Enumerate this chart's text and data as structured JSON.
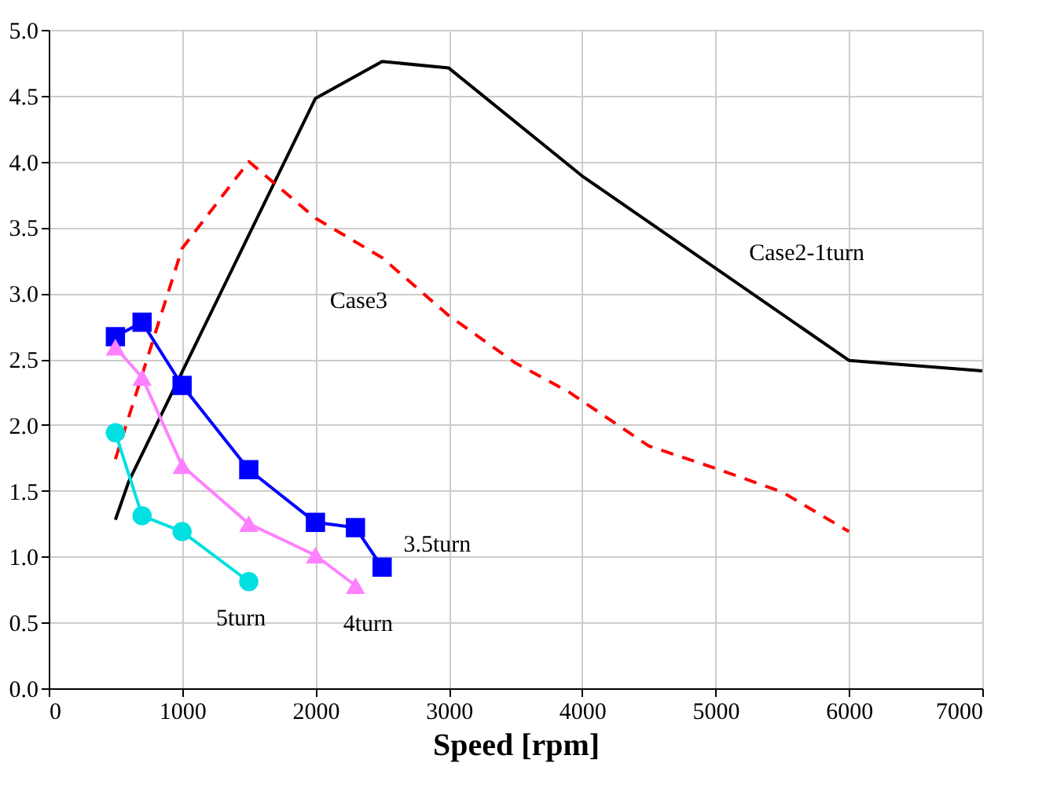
{
  "chart_data": {
    "type": "line",
    "xlabel": "Speed [rpm]",
    "xlim": [
      0,
      7000
    ],
    "xticks": [
      0,
      1000,
      2000,
      3000,
      4000,
      5000,
      6000,
      7000
    ],
    "ylim": [
      0,
      5.0
    ],
    "yticks": [
      {
        "value": 0,
        "label": "0.0"
      },
      {
        "value": 0.5,
        "label": "0.5"
      },
      {
        "value": 1,
        "label": "1.0"
      },
      {
        "value": 1.5,
        "label": "1.5"
      },
      {
        "value": 2,
        "label": "2.0"
      },
      {
        "value": 2.5,
        "label": "2.5"
      },
      {
        "value": 3,
        "label": "3.0"
      },
      {
        "value": 3.5,
        "label": "3.5"
      },
      {
        "value": 4,
        "label": "4.0"
      },
      {
        "value": 4.5,
        "label": "4.5"
      },
      {
        "value": 5,
        "label": "5.0"
      }
    ],
    "grid": true,
    "series": [
      {
        "name": "Case2-1turn",
        "color": "#000000",
        "marker": "none",
        "line_style": "solid",
        "x": [
          500,
          600,
          2000,
          2500,
          3000,
          4000,
          5000,
          6000,
          7000
        ],
        "values": [
          1.28,
          1.57,
          4.48,
          4.76,
          4.71,
          3.89,
          3.19,
          2.49,
          2.41
        ]
      },
      {
        "name": "Case3",
        "color": "#ff0000",
        "marker": "none",
        "line_style": "dashed",
        "x": [
          500,
          1000,
          1500,
          2000,
          2500,
          3000,
          3500,
          3900,
          4500,
          5000,
          5500,
          6000
        ],
        "values": [
          1.74,
          3.34,
          4.0,
          3.57,
          3.27,
          2.83,
          2.47,
          2.25,
          1.84,
          1.67,
          1.49,
          1.19
        ]
      },
      {
        "name": "3.5turn",
        "color": "#0000ff",
        "marker": "square",
        "line_style": "solid",
        "x": [
          500,
          700,
          1000,
          1500,
          2000,
          2300,
          2500
        ],
        "values": [
          2.67,
          2.78,
          2.3,
          1.66,
          1.26,
          1.22,
          0.92
        ]
      },
      {
        "name": "4turn",
        "color": "#ff80ff",
        "marker": "triangle",
        "line_style": "solid",
        "x": [
          500,
          700,
          1000,
          1500,
          2000,
          2300
        ],
        "values": [
          2.59,
          2.36,
          1.69,
          1.25,
          1.01,
          0.78
        ]
      },
      {
        "name": "5turn",
        "color": "#00e0e0",
        "marker": "circle",
        "line_style": "solid",
        "x": [
          500,
          700,
          1000,
          1500
        ],
        "values": [
          1.94,
          1.31,
          1.19,
          0.81
        ]
      }
    ]
  }
}
